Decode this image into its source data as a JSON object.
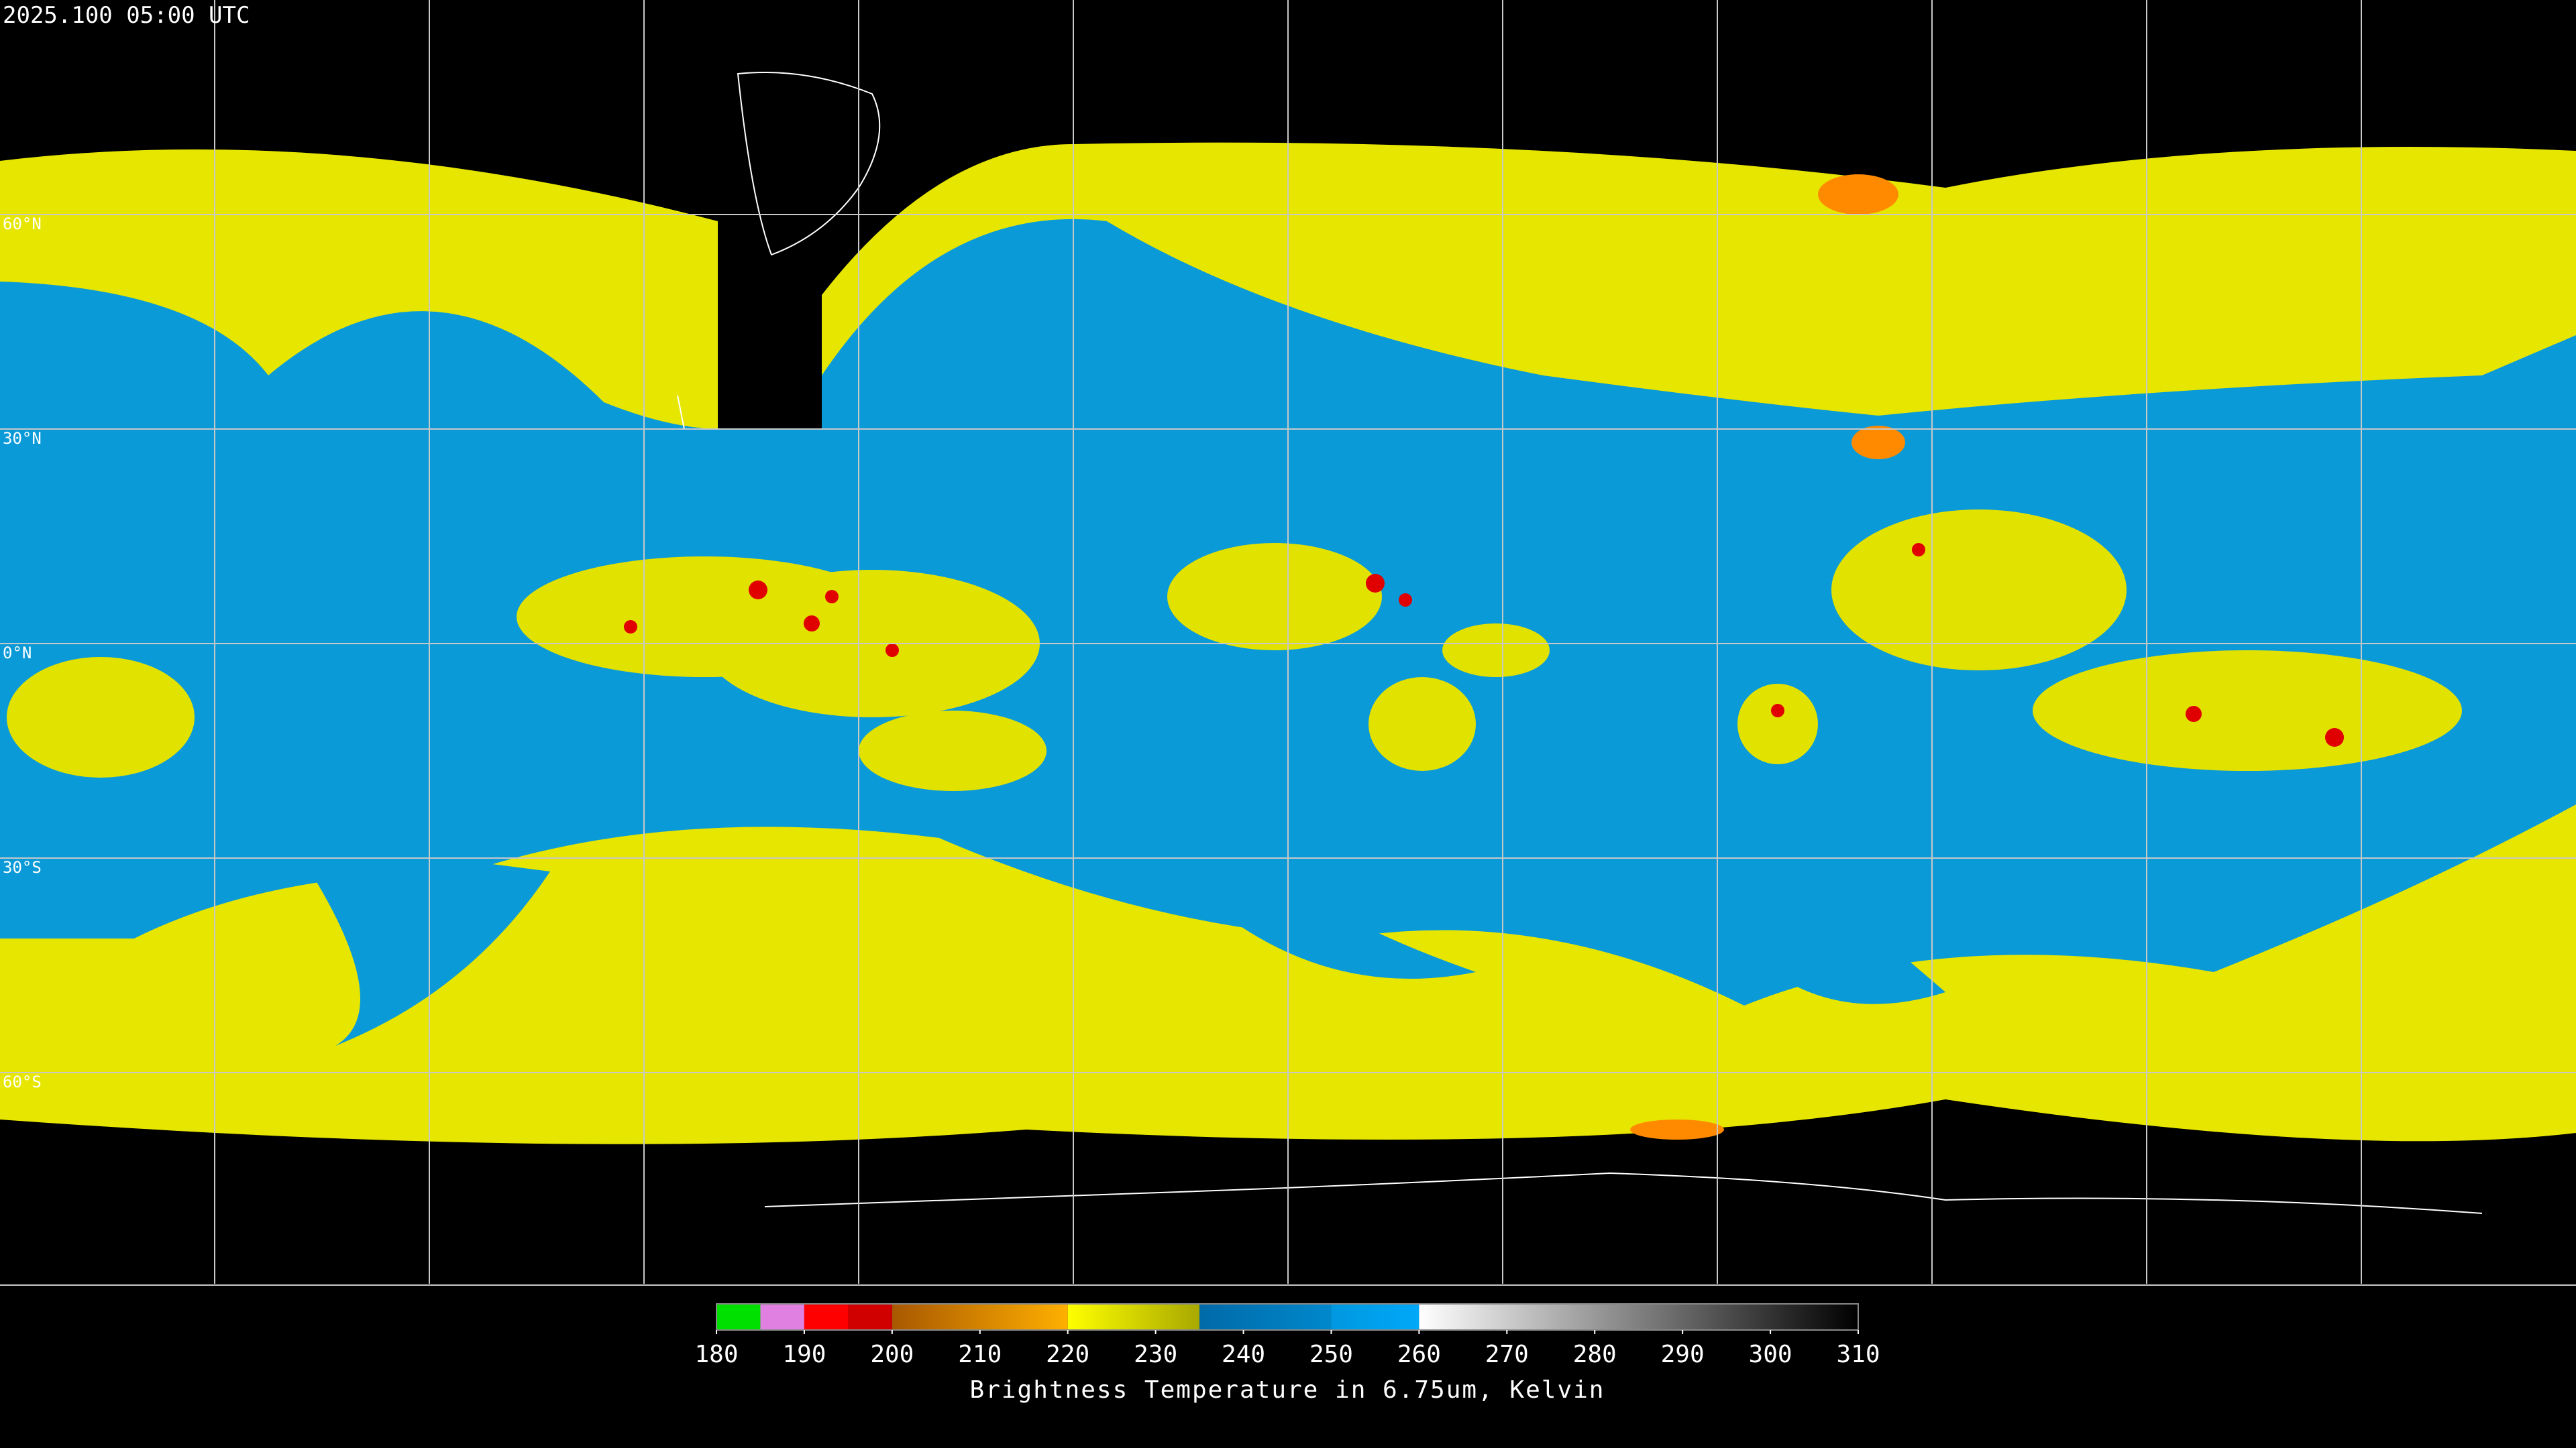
{
  "header": {
    "title": "2025.100 05:00 UTC"
  },
  "lat_labels": [
    "60°N",
    "30°N",
    "0°N",
    "30°S",
    "60°S"
  ],
  "colorbar": {
    "label": "Brightness Temperature in 6.75um, Kelvin",
    "range": [
      180,
      310
    ],
    "ticks": [
      180,
      190,
      200,
      210,
      220,
      230,
      240,
      250,
      260,
      270,
      280,
      290,
      300,
      310
    ],
    "segments": [
      {
        "from": 180,
        "to": 185,
        "color_start": "#00e000",
        "color_end": "#00e000"
      },
      {
        "from": 185,
        "to": 190,
        "color_start": "#e080e0",
        "color_end": "#e080e0"
      },
      {
        "from": 190,
        "to": 195,
        "color_start": "#ff0000",
        "color_end": "#ff0000"
      },
      {
        "from": 195,
        "to": 200,
        "color_start": "#d00000",
        "color_end": "#d00000"
      },
      {
        "from": 200,
        "to": 220,
        "color_start": "#a85800",
        "color_end": "#ffb000"
      },
      {
        "from": 220,
        "to": 235,
        "color_start": "#ffff00",
        "color_end": "#a8a800"
      },
      {
        "from": 235,
        "to": 250,
        "color_start": "#006aa8",
        "color_end": "#0088cc"
      },
      {
        "from": 250,
        "to": 260,
        "color_start": "#0098e0",
        "color_end": "#00a8f8"
      },
      {
        "from": 260,
        "to": 310,
        "color_start": "#ffffff",
        "color_end": "#000000"
      }
    ]
  }
}
